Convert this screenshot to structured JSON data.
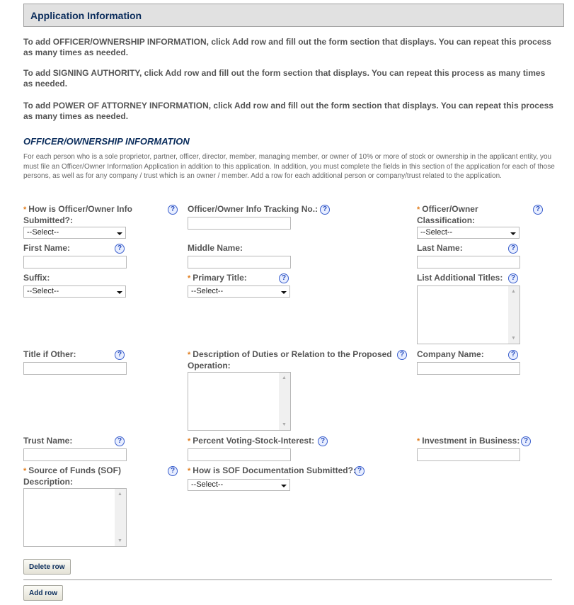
{
  "header": {
    "title": "Application Information"
  },
  "intro": [
    "To add OFFICER/OWNERSHIP INFORMATION, click Add row and fill out the form section that displays. You can repeat this process as many times as needed.",
    "To add SIGNING AUTHORITY, click Add row and fill out the form section that displays. You can repeat this process as many times as needed.",
    "To add POWER OF ATTORNEY INFORMATION, click Add row and fill out the form section that displays. You can repeat this process as many times as needed."
  ],
  "section": {
    "title": "OFFICER/OWNERSHIP INFORMATION",
    "description": "For each person who is a sole proprietor, partner, officer, director, member, managing member, or owner of 10% or more of stock or ownership in the applicant entity, you must file an Officer/Owner Information Application in addition to this application. In addition, you must complete the fields in this section of the application for each of those persons, as well as for any company / trust which is an owner / member. Add a row for each additional person or company/trust related to the application."
  },
  "required_marker": "*",
  "help_glyph": "?",
  "select_placeholder": "--Select--",
  "fields": {
    "submitted": "How is Officer/Owner Info Submitted?:",
    "tracking": "Officer/Owner Info Tracking No.:",
    "classification": "Officer/Owner Classification:",
    "first_name": "First Name:",
    "middle_name": "Middle Name:",
    "last_name": "Last Name:",
    "suffix": "Suffix:",
    "primary_title": "Primary Title:",
    "additional_titles": "List Additional Titles:",
    "title_other": "Title if Other:",
    "duties": "Description of Duties or Relation to the Proposed Operation:",
    "company_name": "Company Name:",
    "trust_name": "Trust Name:",
    "percent_voting": "Percent Voting-Stock-Interest:",
    "investment": "Investment in Business:",
    "sof_description": "Source of Funds (SOF) Description:",
    "sof_documentation": "How is SOF Documentation Submitted?:"
  },
  "buttons": {
    "delete_row": "Delete row",
    "add_row": "Add row"
  },
  "colors": {
    "title": "#0b2d5c",
    "required": "#e07b1a",
    "header_bg": "#e1e1e1"
  }
}
